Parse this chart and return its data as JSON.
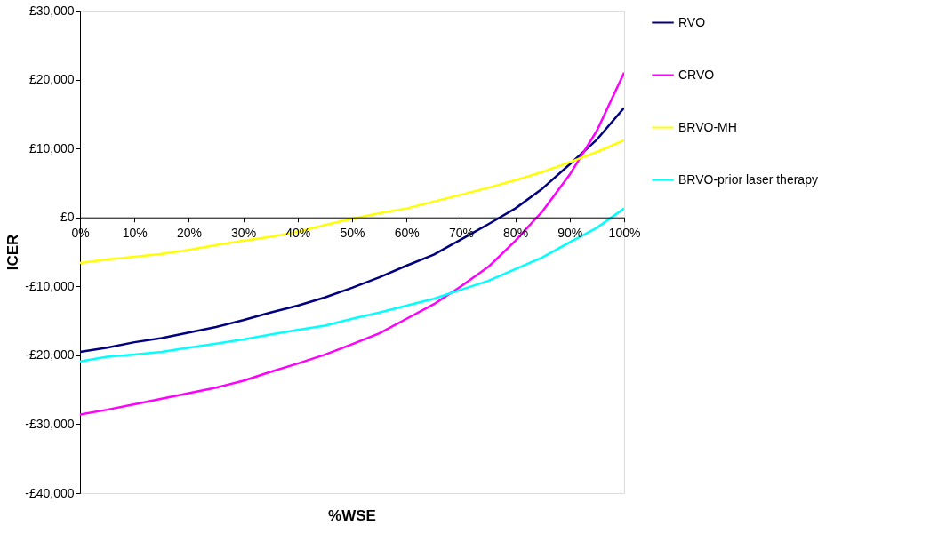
{
  "chart_data": {
    "type": "line",
    "xlabel": "%WSE",
    "ylabel": "ICER",
    "x": [
      0,
      5,
      10,
      15,
      20,
      25,
      30,
      35,
      40,
      45,
      50,
      55,
      60,
      65,
      70,
      75,
      80,
      85,
      90,
      95,
      100
    ],
    "series": [
      {
        "name": "RVO",
        "color": "#000080",
        "values": [
          -19500,
          -18900,
          -18100,
          -17500,
          -16700,
          -15900,
          -14900,
          -13800,
          -12800,
          -11600,
          -10200,
          -8700,
          -7000,
          -5400,
          -3200,
          -1000,
          1300,
          4200,
          7700,
          11300,
          15900
        ]
      },
      {
        "name": "CRVO",
        "color": "#ff00ff",
        "values": [
          -28600,
          -27900,
          -27100,
          -26300,
          -25500,
          -24700,
          -23700,
          -22400,
          -21200,
          -19900,
          -18400,
          -16800,
          -14700,
          -12600,
          -10000,
          -7200,
          -3400,
          900,
          6200,
          12600,
          21000
        ]
      },
      {
        "name": "BRVO-MH",
        "color": "#ffff00",
        "values": [
          -6600,
          -6100,
          -5700,
          -5300,
          -4700,
          -4000,
          -3400,
          -2800,
          -2100,
          -1100,
          -200,
          600,
          1300,
          2300,
          3300,
          4300,
          5400,
          6600,
          8000,
          9500,
          11200
        ]
      },
      {
        "name": "BRVO-prior laser therapy",
        "color": "#00ffff",
        "values": [
          -20900,
          -20200,
          -19900,
          -19500,
          -18900,
          -18300,
          -17700,
          -17000,
          -16300,
          -15700,
          -14700,
          -13800,
          -12800,
          -11800,
          -10500,
          -9200,
          -7500,
          -5800,
          -3600,
          -1500,
          1300
        ]
      }
    ],
    "xlim": [
      0,
      100
    ],
    "xticks": [
      {
        "value": 0,
        "label": "0%"
      },
      {
        "value": 10,
        "label": "10%"
      },
      {
        "value": 20,
        "label": "20%"
      },
      {
        "value": 30,
        "label": "30%"
      },
      {
        "value": 40,
        "label": "40%"
      },
      {
        "value": 50,
        "label": "50%"
      },
      {
        "value": 60,
        "label": "60%"
      },
      {
        "value": 70,
        "label": "70%"
      },
      {
        "value": 80,
        "label": "80%"
      },
      {
        "value": 90,
        "label": "90%"
      },
      {
        "value": 100,
        "label": "100%"
      }
    ],
    "ylim": [
      -40000,
      30000
    ],
    "yticks": [
      {
        "value": -40000,
        "label": "-£40,000"
      },
      {
        "value": -30000,
        "label": "-£30,000"
      },
      {
        "value": -20000,
        "label": "-£20,000"
      },
      {
        "value": -10000,
        "label": "-£10,000"
      },
      {
        "value": 0,
        "label": "£0"
      },
      {
        "value": 10000,
        "label": "£10,000"
      },
      {
        "value": 20000,
        "label": "£20,000"
      },
      {
        "value": 30000,
        "label": "£30,000"
      }
    ],
    "grid": false,
    "legend": "right",
    "marker": "none",
    "line_style": "solid"
  }
}
